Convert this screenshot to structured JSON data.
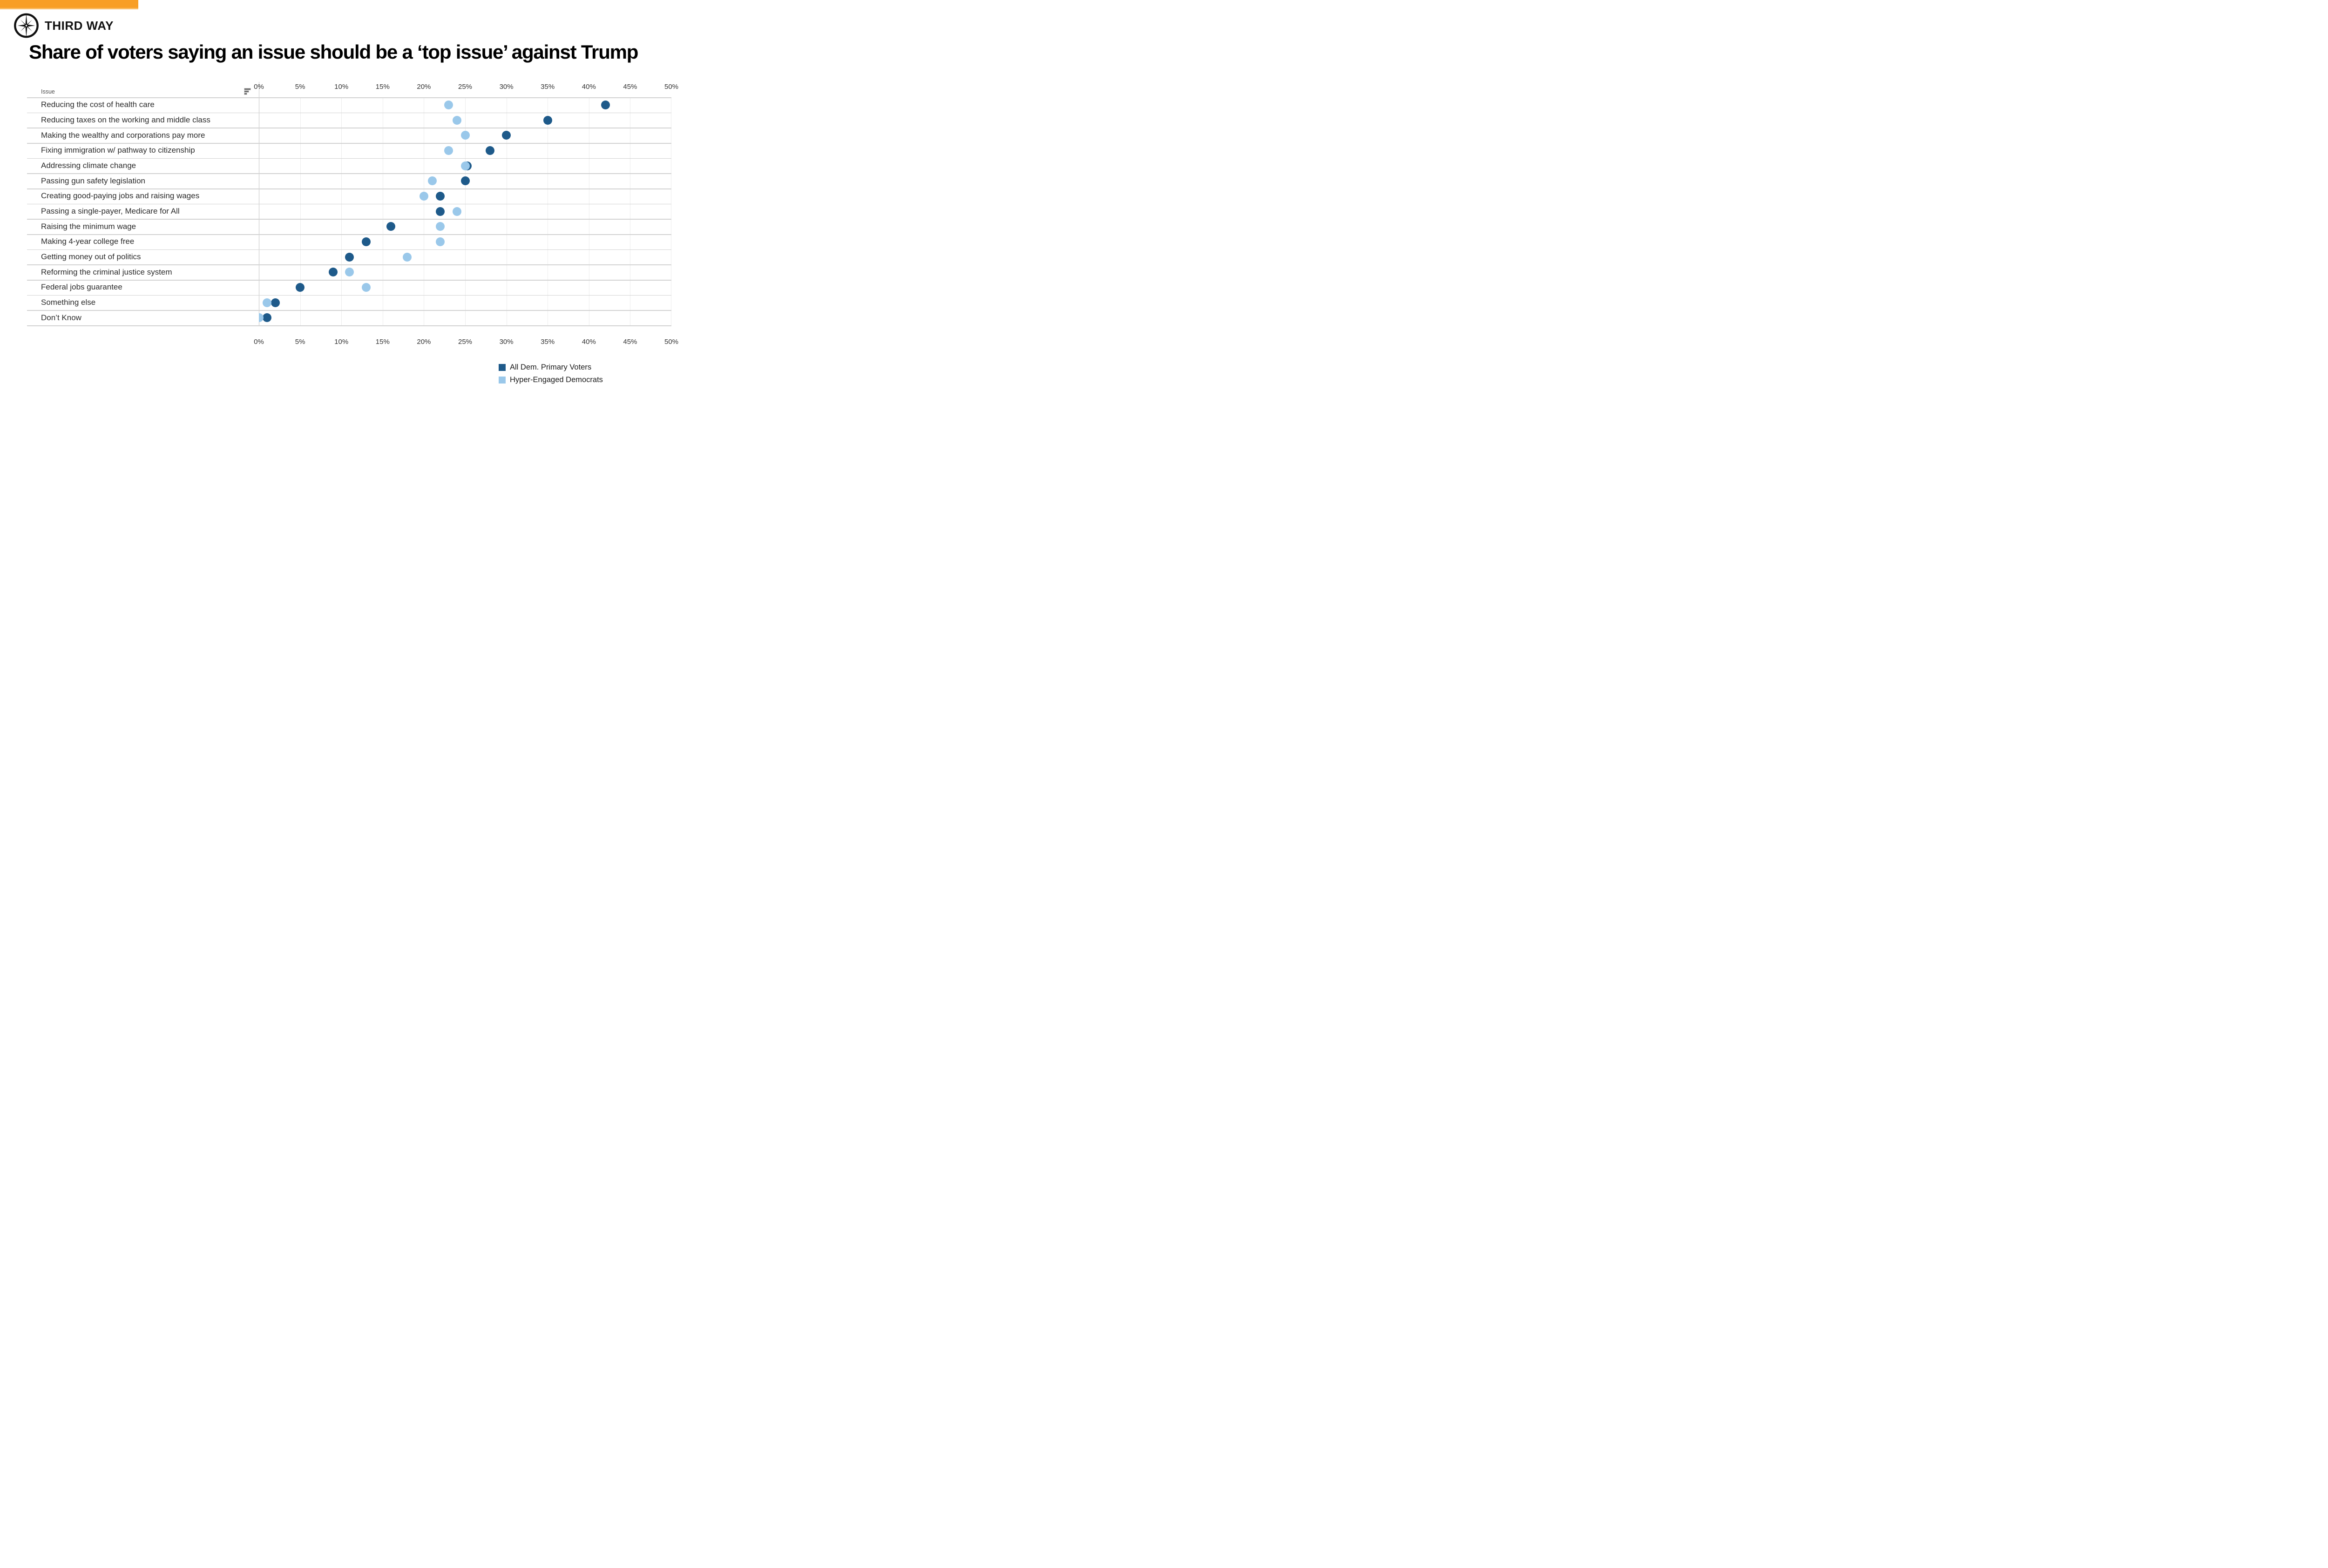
{
  "brand": {
    "logo_text": "THIRD WAY",
    "bar_color": "#F89E26",
    "bar_strip_color": "#FABB64"
  },
  "title": "Share of voters saying an issue should be a ‘top issue’ against Trump",
  "table": {
    "issue_header": "Issue",
    "sort_icon": "sort-descending-icon"
  },
  "axis": {
    "ticks": [
      "0%",
      "5%",
      "10%",
      "15%",
      "20%",
      "25%",
      "30%",
      "35%",
      "40%",
      "45%",
      "50%"
    ],
    "min": 0,
    "max": 50,
    "step": 5
  },
  "colors": {
    "all_dem": "#1E5A8A",
    "hyper_engaged": "#9AC8EA",
    "gridline": "#ececec",
    "separator": "#d2d2d2"
  },
  "chart_data": {
    "type": "scatter",
    "title": "Share of voters saying an issue should be a ‘top issue’ against Trump",
    "xlabel": "",
    "ylabel": "Issue",
    "xlim": [
      0,
      50
    ],
    "grid_step": 5,
    "legend_position": "bottom-right",
    "categories": [
      "Reducing the cost of health care",
      "Reducing taxes on the working and middle class",
      "Making the wealthy and corporations pay more",
      "Fixing immigration w/ pathway to citizenship",
      "Addressing climate change",
      "Passing gun safety legislation",
      "Creating good-paying jobs and raising wages",
      "Passing a single-payer, Medicare for All",
      "Raising the minimum wage",
      "Making 4-year college free",
      "Getting money out of politics",
      "Reforming the criminal justice system",
      "Federal jobs guarantee",
      "Something else",
      "Don’t Know"
    ],
    "series": [
      {
        "name": "All Dem. Primary Voters",
        "color": "#1E5A8A",
        "values": [
          42,
          35,
          30,
          28,
          25,
          25,
          22,
          22,
          16,
          13,
          11,
          9,
          5,
          2,
          1
        ]
      },
      {
        "name": "Hyper-Engaged Democrats",
        "color": "#9AC8EA",
        "values": [
          23,
          24,
          25,
          23,
          25,
          21,
          20,
          24,
          22,
          22,
          18,
          11,
          13,
          1,
          0
        ]
      }
    ]
  }
}
